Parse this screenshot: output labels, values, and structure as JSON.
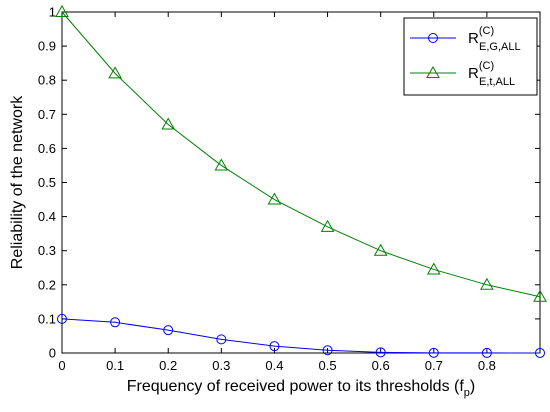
{
  "chart_data": {
    "type": "line",
    "title": "",
    "xlabel": "Frequency of received power to its thresholds (f",
    "xlabel_sub": "p",
    "xlabel_end": ")",
    "ylabel": "Reliability of the network",
    "xlim": [
      0,
      0.9
    ],
    "ylim": [
      0,
      1
    ],
    "xticks": [
      0,
      0.1,
      0.2,
      0.3,
      0.4,
      0.5,
      0.6,
      0.7,
      0.8
    ],
    "xtick_labels": [
      "0",
      "0.1",
      "0.2",
      "0.3",
      "0.4",
      "0.5",
      "0.6",
      "0.7",
      "0.8"
    ],
    "yticks": [
      0,
      0.1,
      0.2,
      0.3,
      0.4,
      0.5,
      0.6,
      0.7,
      0.8,
      0.9,
      1
    ],
    "ytick_labels": [
      "0",
      "0.1",
      "0.2",
      "0.3",
      "0.4",
      "0.5",
      "0.6",
      "0.7",
      "0.8",
      "0.9",
      "1"
    ],
    "grid": false,
    "legend_position": "top-right",
    "x": [
      0,
      0.1,
      0.2,
      0.3,
      0.4,
      0.5,
      0.6,
      0.7,
      0.8,
      0.9
    ],
    "series": [
      {
        "name": "R",
        "name_sup": "(C)",
        "name_sub": "E,G,ALL",
        "color": "#0000ff",
        "marker": "circle",
        "values": [
          0.1,
          0.09,
          0.067,
          0.04,
          0.02,
          0.008,
          0.002,
          0.0005,
          0.0002,
          0.0001
        ]
      },
      {
        "name": "R",
        "name_sup": "(C)",
        "name_sub": "E,t,ALL",
        "color": "#008000",
        "marker": "triangle",
        "values": [
          1.0,
          0.82,
          0.67,
          0.55,
          0.45,
          0.37,
          0.3,
          0.245,
          0.2,
          0.165
        ]
      }
    ]
  }
}
